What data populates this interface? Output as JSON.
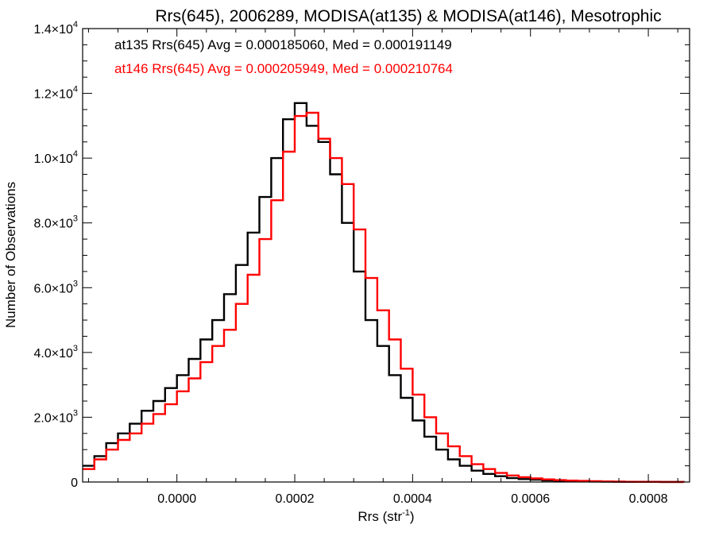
{
  "chart_data": {
    "type": "line",
    "title": "Rrs(645), 2006289, MODISA(at135) & MODISA(at146), Mesotrophic",
    "xlabel": "Rrs (str",
    "xlabel_sup": "-1",
    "xlabel_close": ")",
    "ylabel": "Number of Observations",
    "xlim": [
      -0.00016,
      0.00087
    ],
    "ylim": [
      0,
      14000
    ],
    "x_ticks": [
      {
        "value": 0.0,
        "label": "0.0000"
      },
      {
        "value": 0.0002,
        "label": "0.0002"
      },
      {
        "value": 0.0004,
        "label": "0.0004"
      },
      {
        "value": 0.0006,
        "label": "0.0006"
      },
      {
        "value": 0.0008,
        "label": "0.0008"
      }
    ],
    "y_ticks": [
      {
        "value": 0,
        "mant": "0",
        "exp": ""
      },
      {
        "value": 2000,
        "mant": "2.0×10",
        "exp": "3"
      },
      {
        "value": 4000,
        "mant": "4.0×10",
        "exp": "3"
      },
      {
        "value": 6000,
        "mant": "6.0×10",
        "exp": "3"
      },
      {
        "value": 8000,
        "mant": "8.0×10",
        "exp": "3"
      },
      {
        "value": 10000,
        "mant": "1.0×10",
        "exp": "4"
      },
      {
        "value": 12000,
        "mant": "1.2×10",
        "exp": "4"
      },
      {
        "value": 14000,
        "mant": "1.4×10",
        "exp": "4"
      }
    ],
    "grid": false,
    "legend_position": "top-left",
    "series": [
      {
        "label": "at135 Rrs(645) Avg = 0.000185060, Med = 0.000191149",
        "color": "#000000",
        "x": [
          -0.00016,
          -0.00014,
          -0.00012,
          -0.0001,
          -8e-05,
          -6e-05,
          -4e-05,
          -2e-05,
          0.0,
          2e-05,
          4e-05,
          6e-05,
          8e-05,
          0.0001,
          0.00012,
          0.00014,
          0.00016,
          0.00018,
          0.0002,
          0.00022,
          0.00024,
          0.00026,
          0.00028,
          0.0003,
          0.00032,
          0.00034,
          0.00036,
          0.00038,
          0.0004,
          0.00042,
          0.00044,
          0.00046,
          0.00048,
          0.0005,
          0.00052,
          0.00054,
          0.00056,
          0.00058,
          0.0006,
          0.00062,
          0.00064,
          0.00066,
          0.00068,
          0.0007,
          0.00072,
          0.00074,
          0.00076,
          0.00078,
          0.0008,
          0.00082,
          0.00084,
          0.00086
        ],
        "y": [
          500,
          800,
          1200,
          1500,
          1800,
          2200,
          2500,
          2900,
          3300,
          3800,
          4400,
          5000,
          5800,
          6700,
          7700,
          8800,
          10000,
          11200,
          11700,
          11000,
          10500,
          9500,
          8000,
          6500,
          5000,
          4200,
          3300,
          2600,
          1900,
          1400,
          1000,
          700,
          500,
          350,
          250,
          180,
          120,
          90,
          70,
          50,
          40,
          30,
          20,
          15,
          10,
          8,
          6,
          5,
          4,
          3,
          2,
          1
        ]
      },
      {
        "label": "at146 Rrs(645) Avg = 0.000205949, Med = 0.000210764",
        "color": "#ff0000",
        "x": [
          -0.00016,
          -0.00014,
          -0.00012,
          -0.0001,
          -8e-05,
          -6e-05,
          -4e-05,
          -2e-05,
          0.0,
          2e-05,
          4e-05,
          6e-05,
          8e-05,
          0.0001,
          0.00012,
          0.00014,
          0.00016,
          0.00018,
          0.0002,
          0.00022,
          0.00024,
          0.00026,
          0.00028,
          0.0003,
          0.00032,
          0.00034,
          0.00036,
          0.00038,
          0.0004,
          0.00042,
          0.00044,
          0.00046,
          0.00048,
          0.0005,
          0.00052,
          0.00054,
          0.00056,
          0.00058,
          0.0006,
          0.00062,
          0.00064,
          0.00066,
          0.00068,
          0.0007,
          0.00072,
          0.00074,
          0.00076,
          0.00078,
          0.0008,
          0.00082,
          0.00084,
          0.00086
        ],
        "y": [
          400,
          700,
          1000,
          1300,
          1500,
          1800,
          2100,
          2400,
          2800,
          3200,
          3700,
          4200,
          4700,
          5500,
          6400,
          7500,
          8700,
          10200,
          11300,
          11400,
          10600,
          10000,
          9200,
          7800,
          6300,
          5300,
          4400,
          3500,
          2700,
          2000,
          1500,
          1100,
          800,
          550,
          400,
          280,
          200,
          150,
          110,
          80,
          60,
          45,
          35,
          25,
          18,
          12,
          8,
          6,
          4,
          3,
          2,
          1
        ]
      }
    ]
  }
}
